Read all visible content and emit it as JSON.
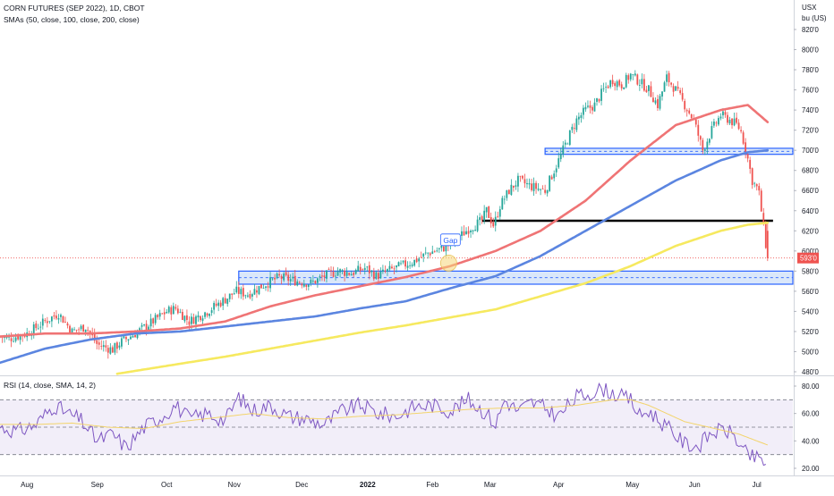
{
  "header": {
    "title": "CORN FUTURES (SEP 2022), 1D, CBOT",
    "indicator": "SMAs (50, close, 100, close, 200, close)",
    "rsi_label": "RSI (14, close, SMA, 14, 2)",
    "unit_line1": "USX",
    "unit_line2": "bu (US)"
  },
  "annotations": {
    "gap_label": "Gap",
    "last_price": "593'0"
  },
  "colors": {
    "up_candle": "#26a69a",
    "down_candle": "#ef5350",
    "sma50": "#ef7475",
    "sma100": "#5b85e0",
    "sma200": "#f6e95f",
    "rsi": "#7e57c2",
    "rsi_ma": "#f3d46b",
    "zone_fill": "#bcd3f5",
    "zone_border": "#2962ff",
    "resistance_line": "#000000"
  },
  "chart_data": [
    {
      "type": "candlestick",
      "title": "CORN FUTURES (SEP 2022), 1D, CBOT",
      "ylabel": "USX / bu (US)",
      "ylim": [
        480,
        820
      ],
      "y_ticks": [
        "480'0",
        "500'0",
        "520'0",
        "540'0",
        "560'0",
        "580'0",
        "600'0",
        "620'0",
        "640'0",
        "660'0",
        "680'0",
        "700'0",
        "720'0",
        "740'0",
        "760'0",
        "780'0",
        "800'0",
        "820'0"
      ],
      "x_ticks": [
        "Aug",
        "Sep",
        "Oct",
        "Nov",
        "Dec",
        "2022",
        "Feb",
        "Mar",
        "Apr",
        "May",
        "Jun",
        "Jul"
      ],
      "x_tick_days": [
        30,
        108,
        185,
        260,
        335,
        408,
        480,
        544,
        620,
        702,
        771,
        840
      ],
      "day_range": [
        0,
        880
      ],
      "price_anchors": {
        "days": [
          0,
          10,
          30,
          50,
          65,
          80,
          95,
          108,
          125,
          135,
          150,
          165,
          185,
          195,
          210,
          230,
          250,
          262,
          275,
          290,
          310,
          330,
          345,
          360,
          375,
          390,
          405,
          418,
          430,
          445,
          460,
          475,
          490,
          505,
          520,
          535,
          540,
          548,
          555,
          565,
          575,
          590,
          605,
          620,
          632,
          640,
          650,
          660,
          670,
          680,
          690,
          700,
          710,
          720,
          730,
          740,
          750,
          760,
          770,
          780,
          790,
          800,
          810,
          818,
          822,
          828,
          835,
          842,
          848,
          852
        ],
        "close": [
          515,
          513,
          518,
          530,
          538,
          520,
          525,
          507,
          502,
          510,
          518,
          527,
          540,
          543,
          530,
          540,
          552,
          560,
          557,
          565,
          574,
          570,
          568,
          575,
          580,
          578,
          583,
          575,
          580,
          585,
          590,
          598,
          602,
          610,
          622,
          630,
          640,
          625,
          645,
          660,
          670,
          664,
          660,
          690,
          715,
          730,
          740,
          745,
          760,
          770,
          765,
          775,
          768,
          760,
          745,
          772,
          760,
          745,
          730,
          700,
          720,
          735,
          730,
          725,
          720,
          700,
          670,
          660,
          620,
          593
        ]
      },
      "last_price": 593,
      "series": [
        {
          "name": "SMA 50",
          "days": [
            0,
            50,
            100,
            150,
            200,
            250,
            300,
            350,
            400,
            450,
            500,
            550,
            600,
            650,
            700,
            750,
            800,
            830,
            852
          ],
          "values": [
            515,
            518,
            518,
            520,
            523,
            530,
            545,
            556,
            565,
            574,
            585,
            600,
            620,
            650,
            690,
            725,
            740,
            745,
            728
          ]
        },
        {
          "name": "SMA 100",
          "days": [
            0,
            50,
            100,
            150,
            200,
            250,
            300,
            350,
            400,
            450,
            500,
            550,
            600,
            650,
            700,
            750,
            800,
            830,
            852
          ],
          "values": [
            489,
            503,
            512,
            518,
            520,
            525,
            530,
            535,
            543,
            550,
            563,
            575,
            595,
            620,
            645,
            670,
            690,
            698,
            700
          ]
        },
        {
          "name": "SMA 200",
          "days": [
            130,
            200,
            250,
            300,
            350,
            400,
            450,
            500,
            550,
            600,
            650,
            700,
            750,
            800,
            830,
            852
          ],
          "values": [
            478,
            488,
            495,
            503,
            511,
            519,
            526,
            534,
            542,
            555,
            568,
            585,
            605,
            620,
            626,
            628
          ]
        }
      ],
      "horizontal_lines": [
        {
          "value": 630
        }
      ],
      "zones": [
        {
          "from": 696,
          "to": 702,
          "day_start": 605,
          "day_end": 880
        },
        {
          "from": 567,
          "to": 580,
          "day_start": 265,
          "day_end": 880
        }
      ]
    },
    {
      "type": "line",
      "title": "RSI (14, close, SMA, 14, 2)",
      "ylim": [
        20,
        80
      ],
      "y_ticks": [
        "20.00",
        "40.00",
        "60.00",
        "80.00"
      ],
      "levels": [
        70,
        50,
        30
      ],
      "series": [
        {
          "name": "RSI",
          "days": [
            0,
            20,
            40,
            60,
            75,
            90,
            108,
            125,
            140,
            160,
            180,
            195,
            210,
            230,
            250,
            265,
            280,
            300,
            320,
            340,
            360,
            380,
            400,
            420,
            440,
            460,
            480,
            500,
            520,
            540,
            550,
            560,
            575,
            590,
            605,
            620,
            640,
            660,
            670,
            690,
            700,
            710,
            720,
            740,
            760,
            775,
            790,
            805,
            815,
            825,
            835,
            845,
            852
          ],
          "values": [
            50,
            47,
            52,
            66,
            60,
            55,
            40,
            45,
            35,
            50,
            58,
            66,
            56,
            60,
            55,
            72,
            62,
            66,
            58,
            56,
            52,
            62,
            66,
            60,
            58,
            65,
            66,
            62,
            70,
            60,
            52,
            70,
            62,
            68,
            64,
            58,
            72,
            76,
            78,
            72,
            70,
            58,
            62,
            50,
            38,
            36,
            46,
            48,
            44,
            32,
            28,
            26,
            22
          ]
        },
        {
          "name": "RSI MA",
          "days": [
            0,
            40,
            80,
            120,
            160,
            200,
            240,
            280,
            320,
            360,
            400,
            440,
            480,
            520,
            560,
            600,
            640,
            680,
            700,
            720,
            740,
            760,
            780,
            800,
            820,
            840,
            852
          ],
          "values": [
            52,
            52,
            53,
            50,
            49,
            54,
            57,
            60,
            57,
            56,
            58,
            59,
            61,
            63,
            64,
            64,
            66,
            70,
            70,
            66,
            60,
            54,
            51,
            48,
            45,
            40,
            37
          ]
        }
      ]
    }
  ]
}
